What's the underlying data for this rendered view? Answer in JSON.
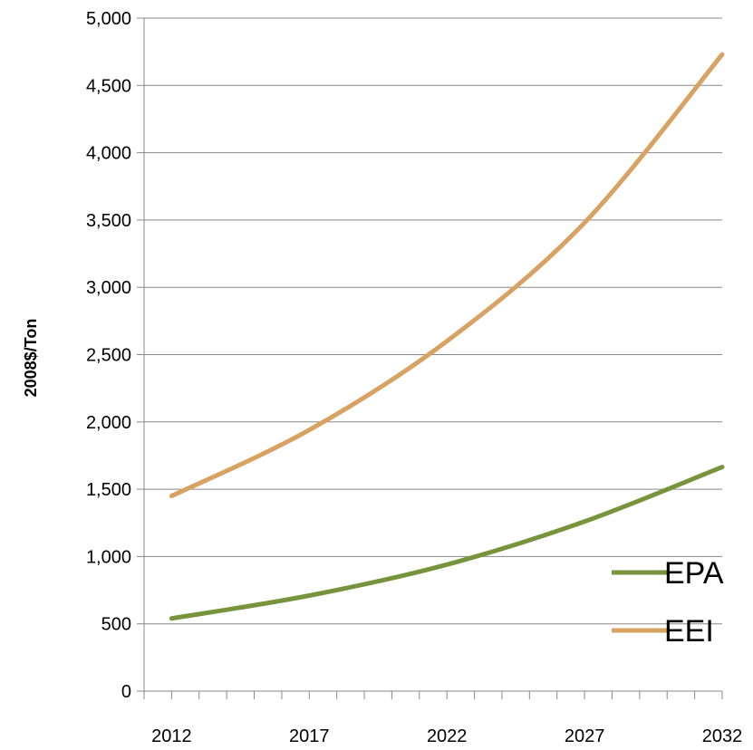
{
  "chart_data": {
    "type": "line",
    "title": "",
    "xlabel": "",
    "ylabel": "2008$/Ton",
    "xlim": [
      2011,
      2032
    ],
    "ylim": [
      0,
      5000
    ],
    "y_ticks": [
      0,
      500,
      1000,
      1500,
      2000,
      2500,
      3000,
      3500,
      4000,
      4500,
      5000
    ],
    "y_tick_labels": [
      "0",
      "500",
      "1,000",
      "1,500",
      "2,000",
      "2,500",
      "3,000",
      "3,500",
      "4,000",
      "4,500",
      "5,000"
    ],
    "x_ticks": [
      2012,
      2017,
      2022,
      2027,
      2032
    ],
    "x_tick_labels": [
      "2012",
      "2017",
      "2022",
      "2027",
      "2032"
    ],
    "grid": "horizontal",
    "legend_position": "bottom-right",
    "series": [
      {
        "name": "EPA",
        "color": "#77933c",
        "x": [
          2012,
          2017,
          2022,
          2027,
          2032
        ],
        "values": [
          540,
          710,
          940,
          1260,
          1665
        ]
      },
      {
        "name": "EEI",
        "color": "#d8a262",
        "x": [
          2012,
          2017,
          2022,
          2027,
          2032
        ],
        "values": [
          1450,
          1940,
          2600,
          3480,
          4730
        ]
      }
    ]
  }
}
